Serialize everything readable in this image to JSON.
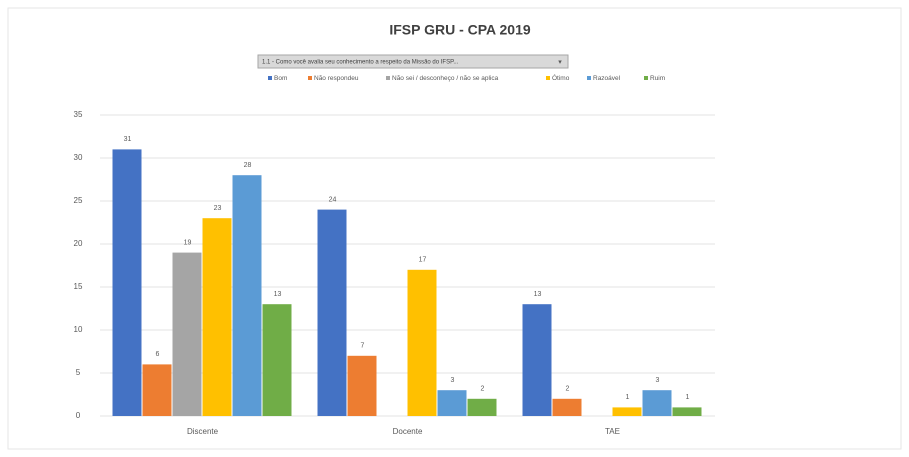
{
  "chart_data": {
    "type": "bar",
    "title": "IFSP GRU - CPA 2019",
    "filter": "1.1 - Como você avalia seu conhecimento a respeito da Missão do IFSP...",
    "categories": [
      "Discente",
      "Docente",
      "TAE"
    ],
    "series": [
      {
        "name": "Bom",
        "color": "#4472c4",
        "values": [
          31,
          24,
          13
        ]
      },
      {
        "name": "Não respondeu",
        "color": "#ed7d31",
        "values": [
          6,
          7,
          2
        ]
      },
      {
        "name": "Não sei / desconheço / não se aplica",
        "color": "#a5a5a5",
        "values": [
          19,
          null,
          null
        ]
      },
      {
        "name": "Ótimo",
        "color": "#ffc000",
        "values": [
          23,
          17,
          1
        ]
      },
      {
        "name": "Razoável",
        "color": "#5b9bd5",
        "values": [
          28,
          3,
          3
        ]
      },
      {
        "name": "Ruim",
        "color": "#70ad47",
        "values": [
          13,
          2,
          1
        ]
      }
    ],
    "ylim": [
      0,
      35
    ],
    "yticks": [
      0,
      5,
      10,
      15,
      20,
      25,
      30,
      35
    ],
    "grid": true,
    "legend": "top"
  }
}
